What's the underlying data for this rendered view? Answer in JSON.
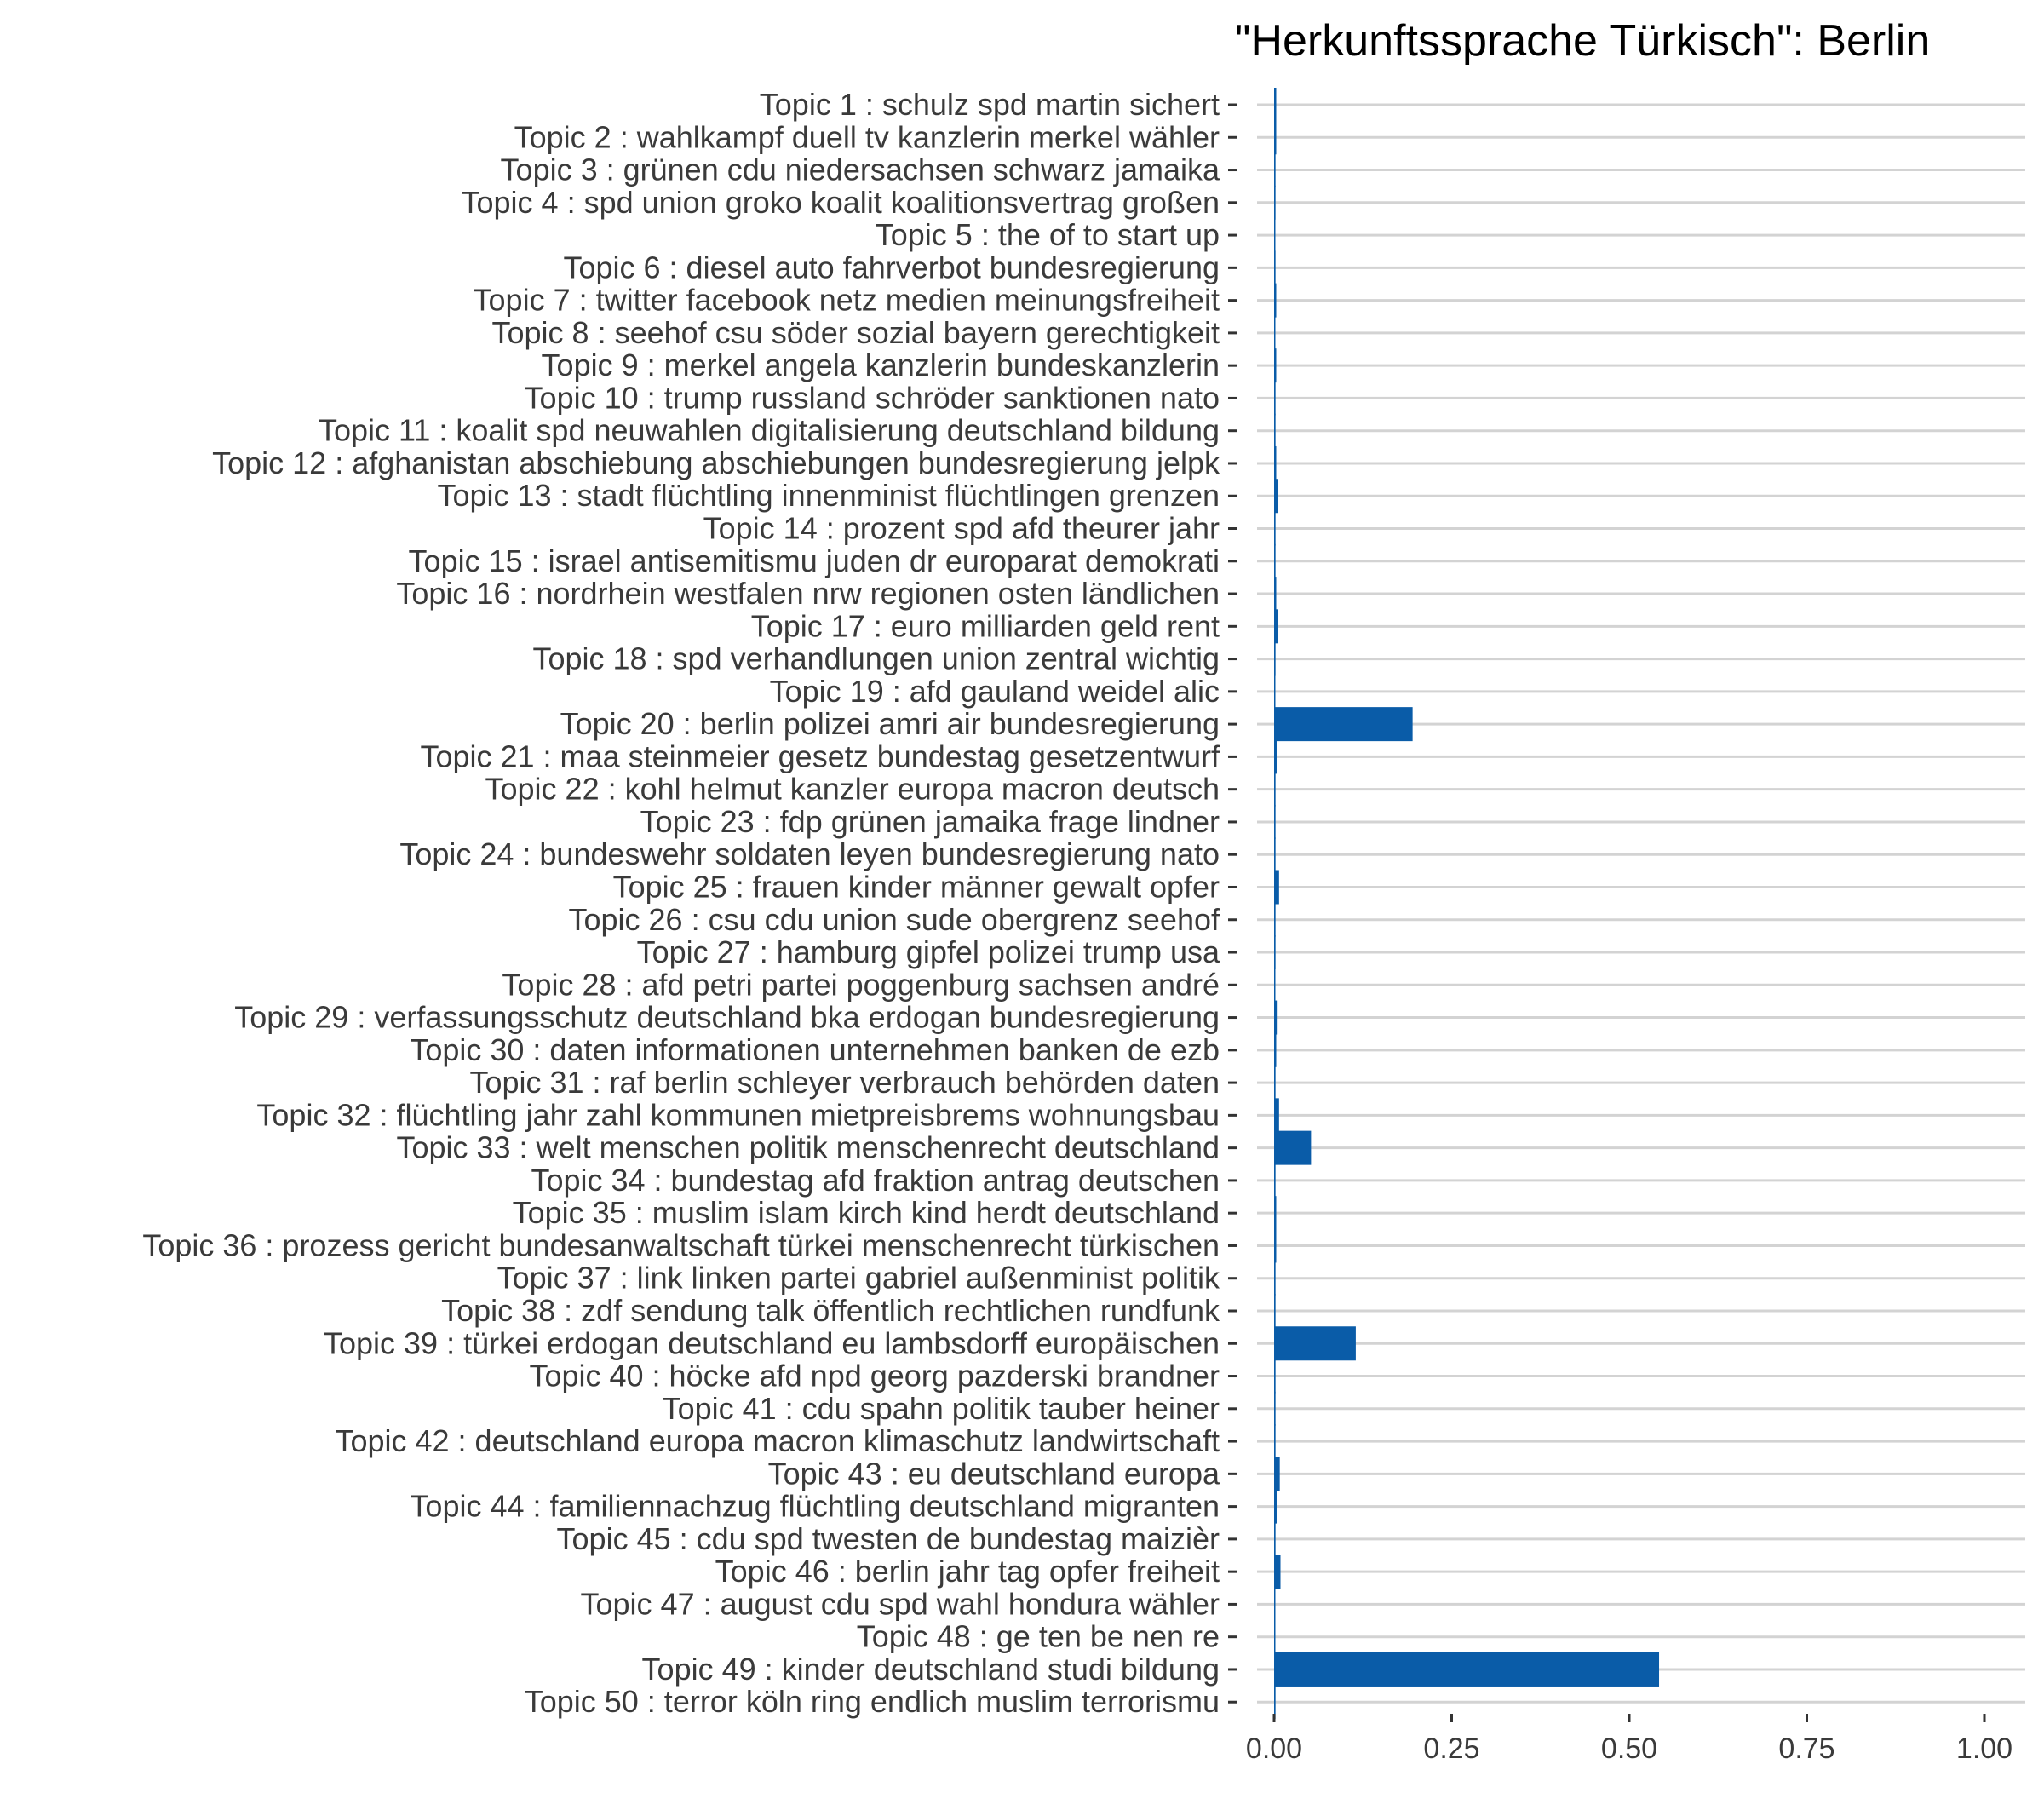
{
  "chart_data": {
    "type": "bar",
    "orientation": "horizontal",
    "title": "\"Herkunftssprache Türkisch\": Berlin",
    "xlabel": "",
    "ylabel": "",
    "xlim": [
      0,
      1
    ],
    "xticks": [
      "0.00",
      "0.25",
      "0.50",
      "0.75",
      "1.00"
    ],
    "grid": "horizontal lines at each category",
    "bar_color": "#0a5ca8",
    "grid_color": "#d3d3d3",
    "categories": [
      "Topic 1 : schulz spd martin sichert",
      "Topic 2 : wahlkampf duell tv kanzlerin merkel wähler",
      "Topic 3 : grünen cdu niedersachsen schwarz jamaika",
      "Topic 4 : spd union groko koalit koalitionsvertrag großen",
      "Topic 5 : the of to start up",
      "Topic 6 : diesel auto fahrverbot bundesregierung",
      "Topic 7 : twitter facebook netz medien meinungsfreiheit",
      "Topic 8 : seehof csu söder sozial bayern gerechtigkeit",
      "Topic 9 : merkel angela kanzlerin bundeskanzlerin",
      "Topic 10 : trump russland schröder sanktionen nato",
      "Topic 11 : koalit spd neuwahlen digitalisierung deutschland bildung",
      "Topic 12 : afghanistan abschiebung abschiebungen bundesregierung jelpk",
      "Topic 13 : stadt flüchtling innenminist flüchtlingen grenzen",
      "Topic 14 : prozent spd afd theurer jahr",
      "Topic 15 : israel antisemitismu juden dr europarat demokrati",
      "Topic 16 : nordrhein westfalen nrw regionen osten ländlichen",
      "Topic 17 : euro milliarden geld rent",
      "Topic 18 : spd verhandlungen union zentral wichtig",
      "Topic 19 : afd gauland weidel alic",
      "Topic 20 : berlin polizei amri air bundesregierung",
      "Topic 21 : maa steinmeier gesetz bundestag gesetzentwurf",
      "Topic 22 : kohl helmut kanzler europa macron deutsch",
      "Topic 23 : fdp grünen jamaika frage lindner",
      "Topic 24 : bundeswehr soldaten leyen bundesregierung nato",
      "Topic 25 : frauen kinder männer gewalt opfer",
      "Topic 26 : csu cdu union sude obergrenz seehof",
      "Topic 27 : hamburg gipfel polizei trump usa",
      "Topic 28 : afd petri partei poggenburg sachsen andré",
      "Topic 29 : verfassungsschutz deutschland bka erdogan bundesregierung",
      "Topic 30 : daten informationen unternehmen banken de ezb",
      "Topic 31 : raf berlin schleyer verbrauch behörden daten",
      "Topic 32 : flüchtling jahr zahl kommunen mietpreisbrems wohnungsbau",
      "Topic 33 : welt menschen politik menschenrecht deutschland",
      "Topic 34 : bundestag afd fraktion antrag deutschen",
      "Topic 35 : muslim islam kirch kind herdt deutschland",
      "Topic 36 : prozess gericht bundesanwaltschaft türkei menschenrecht türkischen",
      "Topic 37 : link linken partei gabriel außenminist politik",
      "Topic 38 : zdf sendung talk öffentlich rechtlichen rundfunk",
      "Topic 39 : türkei erdogan deutschland eu lambsdorff europäischen",
      "Topic 40 : höcke afd npd georg pazderski brandner",
      "Topic 41 : cdu spahn politik tauber heiner",
      "Topic 42 : deutschland europa macron klimaschutz landwirtschaft",
      "Topic 43 : eu deutschland europa",
      "Topic 44 : familiennachzug flüchtling deutschland migranten",
      "Topic 45 : cdu spd twesten de bundestag maizièr",
      "Topic 46 : berlin jahr tag opfer freiheit",
      "Topic 47 : august cdu spd wahl hondura wähler",
      "Topic 48 : ge ten be nen re",
      "Topic 49 : kinder deutschland studi bildung",
      "Topic 50 : terror köln ring endlich muslim terrorismu"
    ],
    "values": [
      0.003,
      0.003,
      0.002,
      0.002,
      0.001,
      0.002,
      0.003,
      0.001,
      0.003,
      0.002,
      0.002,
      0.003,
      0.006,
      0.002,
      0.002,
      0.003,
      0.006,
      0.002,
      0.001,
      0.195,
      0.004,
      0.002,
      0.002,
      0.002,
      0.007,
      0.002,
      0.002,
      0.001,
      0.005,
      0.003,
      0.002,
      0.007,
      0.052,
      0.002,
      0.003,
      0.003,
      0.002,
      0.002,
      0.115,
      0.002,
      0.002,
      0.002,
      0.008,
      0.004,
      0.002,
      0.009,
      0.001,
      0.001,
      0.542,
      0.002
    ]
  }
}
